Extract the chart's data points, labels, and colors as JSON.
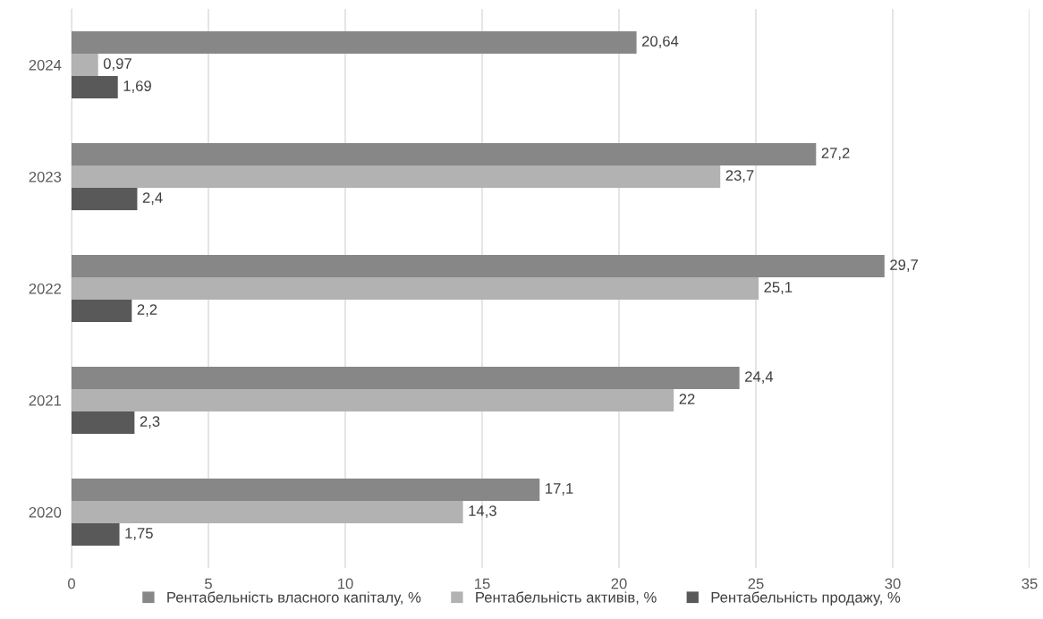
{
  "chart_data": {
    "type": "bar",
    "orientation": "horizontal",
    "categories": [
      "2024",
      "2023",
      "2022",
      "2021",
      "2020"
    ],
    "series": [
      {
        "name": "Рентабельність власного капіталу, %",
        "color": "#878787",
        "values": [
          20.64,
          27.2,
          29.7,
          24.4,
          17.1
        ],
        "value_labels": [
          "20,64",
          "27,2",
          "29,7",
          "24,4",
          "17,1"
        ]
      },
      {
        "name": "Рентабельність активів, %",
        "color": "#b2b2b2",
        "values": [
          0.97,
          23.7,
          25.1,
          22,
          14.3
        ],
        "value_labels": [
          "0,97",
          "23,7",
          "25,1",
          "22",
          "14,3"
        ]
      },
      {
        "name": "Рентабельність продажу, %",
        "color": "#595959",
        "values": [
          1.69,
          2.4,
          2.2,
          2.3,
          1.75
        ],
        "value_labels": [
          "1,69",
          "2,4",
          "2,2",
          "2,3",
          "1,75"
        ]
      }
    ],
    "xlim": [
      0,
      35
    ],
    "xticks": [
      0,
      5,
      10,
      15,
      20,
      25,
      30,
      35
    ],
    "grid": "x",
    "legend": "bottom"
  }
}
